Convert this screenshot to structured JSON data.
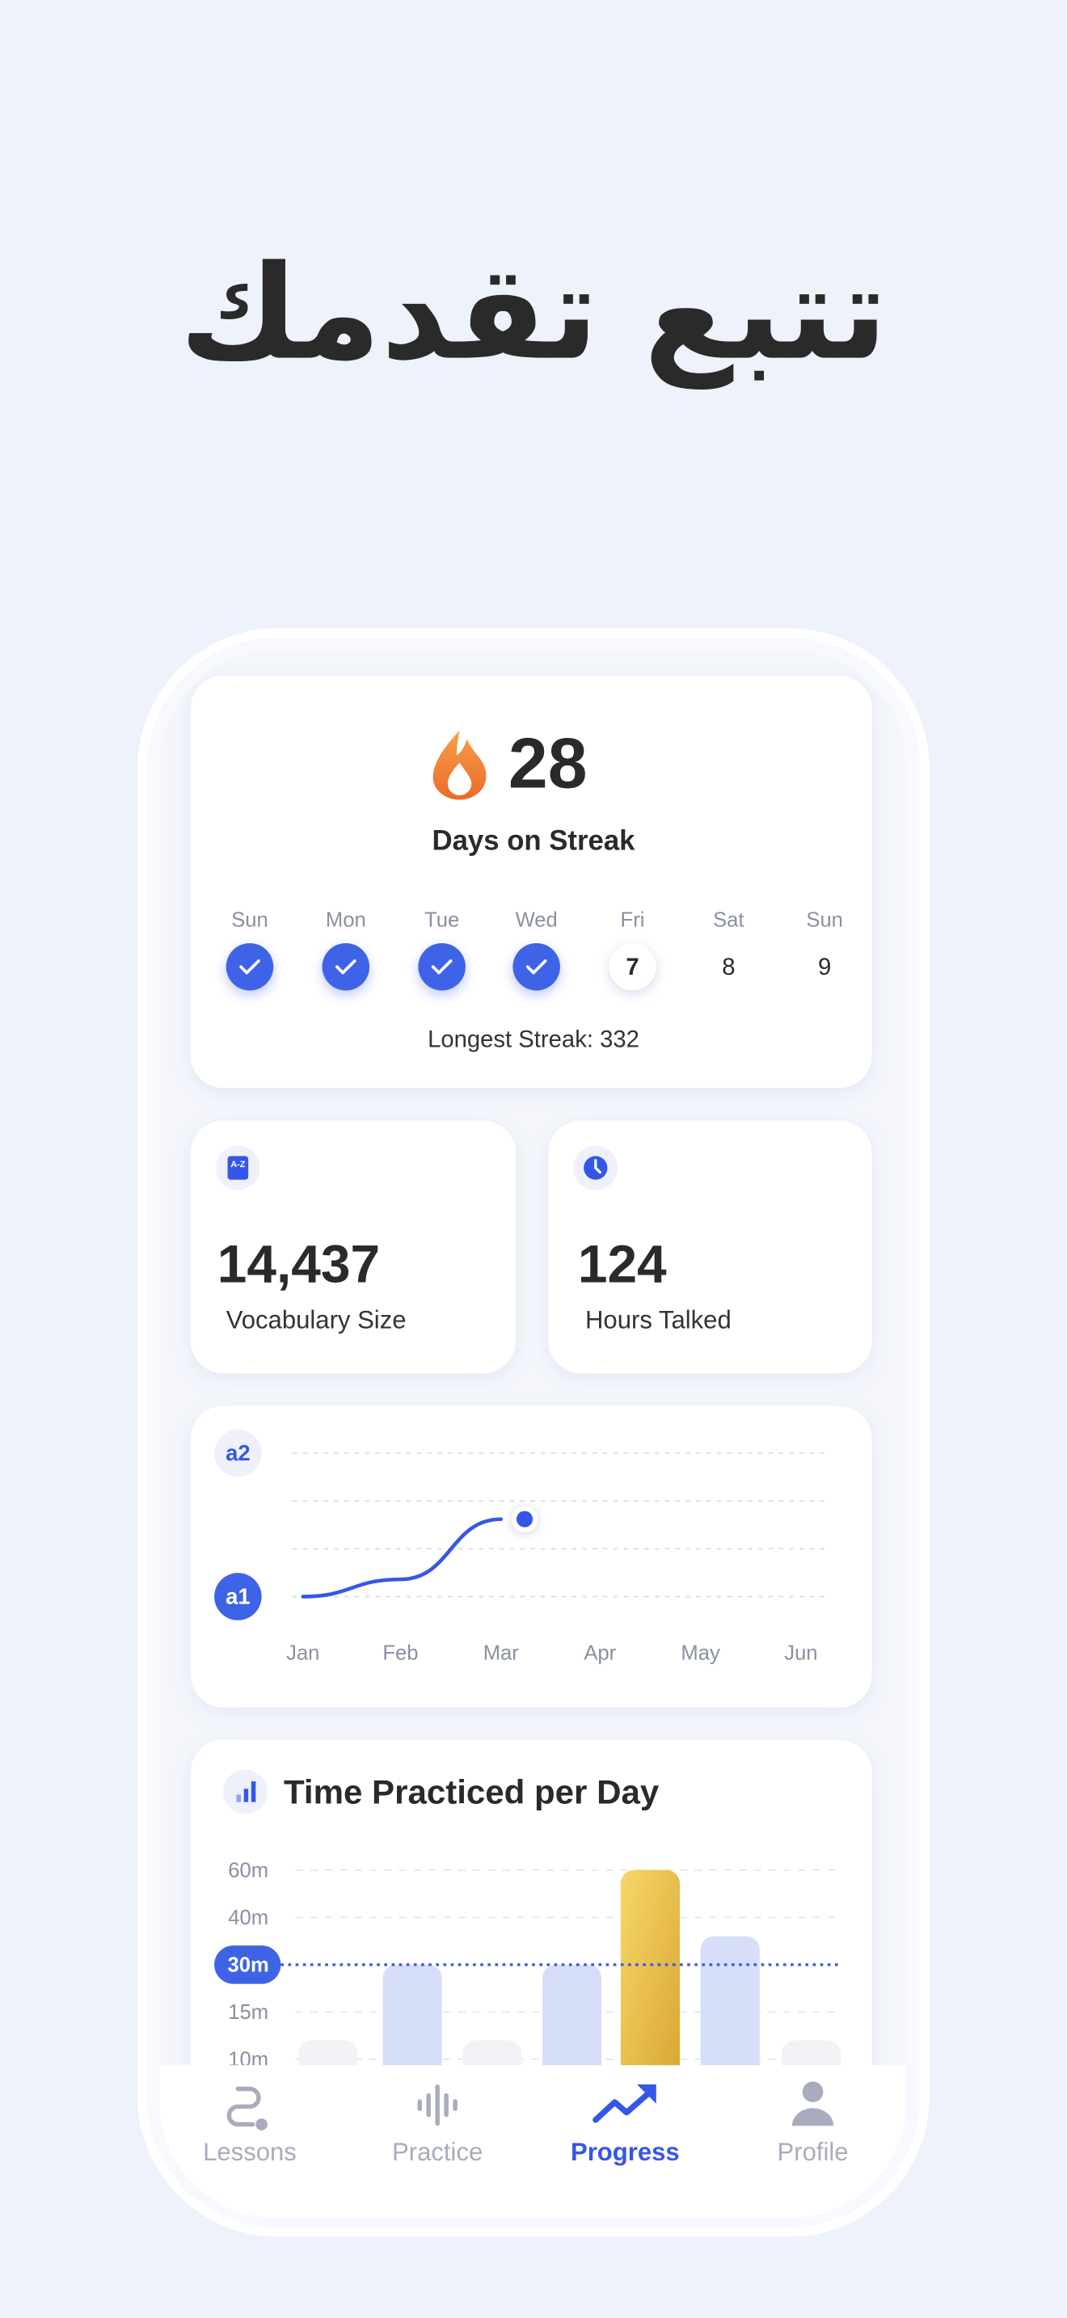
{
  "header": {
    "title": "تتبع تقدمك"
  },
  "streak": {
    "count": 28,
    "label": "Days on Streak",
    "days": [
      {
        "day": "Sun",
        "done": true
      },
      {
        "day": "Mon",
        "done": true
      },
      {
        "day": "Tue",
        "done": true
      },
      {
        "day": "Wed",
        "done": true
      },
      {
        "day": "Fri",
        "date": 7,
        "today": true
      },
      {
        "day": "Sat",
        "date": 8
      },
      {
        "day": "Sun",
        "date": 9
      }
    ],
    "longest": "Longest Streak: 332"
  },
  "stats": [
    {
      "value": "14,437",
      "label": "Vocabulary Size"
    },
    {
      "value": "124",
      "label": "Hours Talked"
    }
  ],
  "level_chart": {
    "type": "line",
    "categories": [
      "Jan",
      "Feb",
      "Mar",
      "Apr",
      "May",
      "Jun"
    ],
    "values": [
      1,
      1.12,
      1.54,
      null,
      null,
      null
    ],
    "ylim": [
      1,
      2
    ],
    "yticks": [
      {
        "value": 1,
        "label": "a1"
      },
      {
        "value": 2,
        "label": "a2"
      }
    ],
    "color": "#3557e8"
  },
  "time_chart": {
    "type": "bar",
    "title": "Time Practiced per Day",
    "values": [
      12,
      30,
      12,
      30,
      60,
      36,
      12
    ],
    "yticks": [
      {
        "value": 60,
        "label": "60m"
      },
      {
        "value": 40,
        "label": "40m"
      },
      {
        "value": 30,
        "label": "30m"
      },
      {
        "value": 15,
        "label": "15m"
      },
      {
        "value": 10,
        "label": "10m"
      }
    ],
    "reference": 30,
    "color": "#d6defa"
  },
  "nav": [
    {
      "label": "Lessons"
    },
    {
      "label": "Practice"
    },
    {
      "label": "Progress",
      "active": true
    },
    {
      "label": "Profile"
    }
  ]
}
